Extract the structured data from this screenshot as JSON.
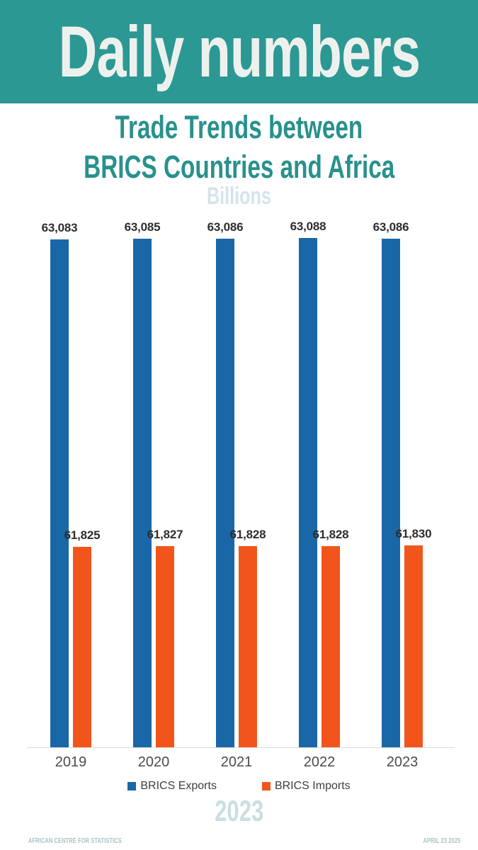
{
  "header": {
    "title": "Daily numbers"
  },
  "title": {
    "line1": "Trade Trends between",
    "line2": "BRICS Countries and Africa"
  },
  "theme": {
    "header_bg": "#2b9894",
    "header_text": "#edf1ee",
    "title_color": "#28918d",
    "units_color": "#d5e4ea",
    "big_year_color": "#c9dfe2",
    "footer_color": "#a9c2c2"
  },
  "chart_data": {
    "type": "bar",
    "title": "Trade Trends between BRICS Countries and Africa",
    "ylabel": "Billions",
    "xlabel": "",
    "categories": [
      "2019",
      "2020",
      "2021",
      "2022",
      "2023"
    ],
    "series": [
      {
        "name": "BRICS Exports",
        "color": "#1a67a8",
        "values": [
          63083,
          63085,
          63086,
          63088,
          63086
        ]
      },
      {
        "name": "BRICS Imports",
        "color": "#f2551c",
        "values": [
          61825,
          61827,
          61828,
          61828,
          61830
        ]
      }
    ],
    "ylim": [
      61000,
      63300
    ],
    "grid": false,
    "y_axis_shown": false,
    "value_labels_shown": true,
    "legend_position": "bottom"
  },
  "big_year": "2023",
  "footer": {
    "left": "AFRICAN CENTRE FOR STATISTICS",
    "right": "APRIL 23 2025"
  }
}
